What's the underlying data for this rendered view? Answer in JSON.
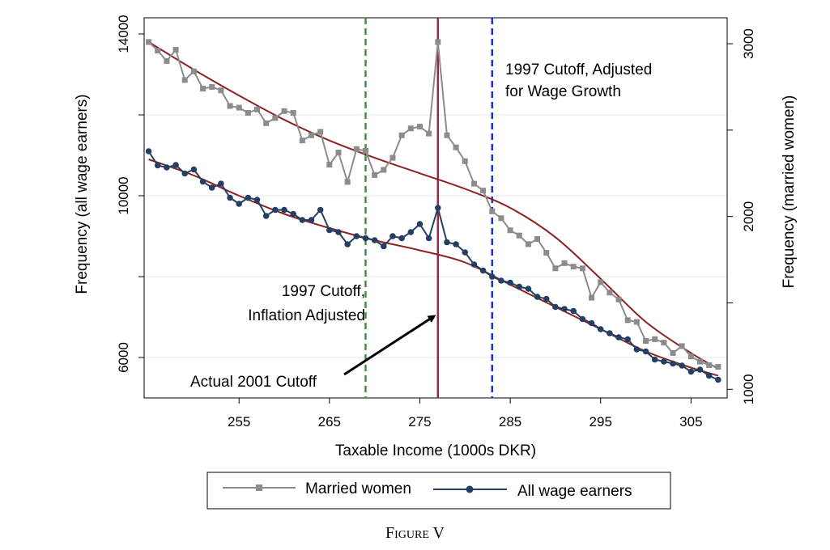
{
  "caption": "Figure V",
  "chart_data": {
    "type": "line",
    "xlabel": "Taxable Income (1000s DKR)",
    "ylabel_left": "Frequency (all wage earners)",
    "ylabel_right": "Frequency (married women)",
    "xlim": [
      244.5,
      309
    ],
    "ylim_left": [
      5000,
      14400
    ],
    "ylim_right": [
      950,
      3150
    ],
    "x_ticks": [
      255,
      265,
      275,
      285,
      295,
      305
    ],
    "y_ticks_left": [
      6000,
      10000,
      14000
    ],
    "y_ticks_right": [
      1000,
      2000,
      3000
    ],
    "grid": true,
    "legend_position": "bottom",
    "x": [
      245,
      246,
      247,
      248,
      249,
      250,
      251,
      252,
      253,
      254,
      255,
      256,
      257,
      258,
      259,
      260,
      261,
      262,
      263,
      264,
      265,
      266,
      267,
      268,
      269,
      270,
      271,
      272,
      273,
      274,
      275,
      276,
      277,
      278,
      279,
      280,
      281,
      282,
      283,
      284,
      285,
      286,
      287,
      288,
      289,
      290,
      291,
      292,
      293,
      294,
      295,
      296,
      297,
      298,
      299,
      300,
      301,
      302,
      303,
      304,
      305,
      306,
      307,
      308
    ],
    "series": [
      {
        "name": "Married women",
        "axis": "right",
        "color": "#8c8c8c",
        "marker": "square",
        "values": [
          3010,
          2960,
          2900,
          2965,
          2790,
          2840,
          2740,
          2750,
          2730,
          2640,
          2630,
          2600,
          2620,
          2540,
          2570,
          2610,
          2600,
          2440,
          2470,
          2490,
          2300,
          2370,
          2200,
          2390,
          2380,
          2240,
          2270,
          2340,
          2470,
          2510,
          2520,
          2480,
          3010,
          2470,
          2400,
          2320,
          2190,
          2150,
          2030,
          1990,
          1920,
          1890,
          1840,
          1870,
          1790,
          1700,
          1730,
          1710,
          1700,
          1530,
          1620,
          1560,
          1520,
          1400,
          1390,
          1280,
          1290,
          1270,
          1210,
          1250,
          1190,
          1160,
          1140,
          1130
        ]
      },
      {
        "name": "All wage earners",
        "axis": "left",
        "color": "#243f63",
        "marker": "circle",
        "values": [
          11100,
          10750,
          10700,
          10760,
          10550,
          10650,
          10350,
          10200,
          10300,
          9950,
          9800,
          9950,
          9900,
          9500,
          9650,
          9650,
          9550,
          9400,
          9400,
          9650,
          9150,
          9100,
          8800,
          9000,
          8950,
          8900,
          8750,
          9000,
          8950,
          9100,
          9300,
          8950,
          9700,
          8850,
          8800,
          8600,
          8300,
          8150,
          8000,
          7900,
          7850,
          7750,
          7700,
          7500,
          7450,
          7250,
          7200,
          7150,
          6950,
          6850,
          6700,
          6600,
          6500,
          6450,
          6200,
          6150,
          5950,
          5900,
          5850,
          5800,
          5650,
          5700,
          5550,
          5450
        ]
      }
    ],
    "fits": [
      {
        "axis": "right",
        "color": "#8b2323",
        "x": [
          245,
          250,
          255,
          260,
          265,
          270,
          275,
          280,
          285,
          290,
          295,
          300,
          305,
          308
        ],
        "values": [
          3010,
          2850,
          2700,
          2560,
          2440,
          2340,
          2250,
          2160,
          2050,
          1880,
          1640,
          1390,
          1210,
          1120
        ]
      },
      {
        "axis": "left",
        "color": "#8b2323",
        "x": [
          245,
          250,
          255,
          260,
          265,
          270,
          275,
          280,
          285,
          290,
          295,
          300,
          305,
          308
        ],
        "values": [
          10900,
          10500,
          10000,
          9550,
          9200,
          8900,
          8650,
          8350,
          7800,
          7250,
          6700,
          6150,
          5750,
          5550
        ]
      }
    ],
    "vlines": [
      {
        "x": 269,
        "color": "#4a8a4a",
        "style": "dashed"
      },
      {
        "x": 277,
        "color": "#a3224a",
        "style": "solid"
      },
      {
        "x": 283,
        "color": "#1f2fd6",
        "style": "dashed"
      }
    ],
    "annotations": [
      {
        "text": "1997 Cutoff, Adjusted"
      },
      {
        "text": "for Wage Growth"
      },
      {
        "text": "1997 Cutoff,"
      },
      {
        "text": "Inflation Adjusted"
      },
      {
        "text": "Actual 2001 Cutoff"
      }
    ]
  }
}
